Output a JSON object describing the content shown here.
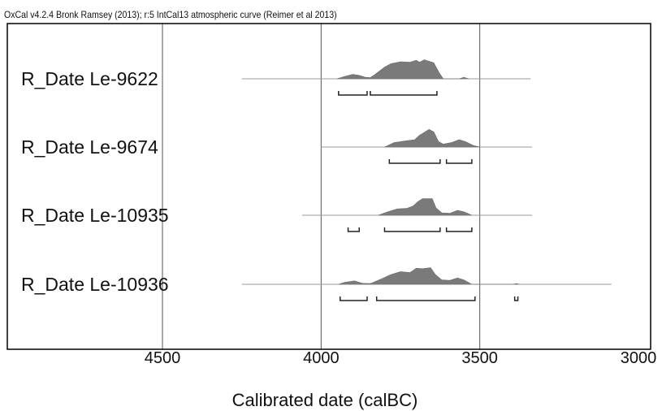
{
  "caption": "OxCal v4.2.4 Bronk Ramsey (2013); r:5 IntCal13 atmospheric curve (Reimer et al 2013)",
  "chart_data": {
    "type": "area",
    "title": "",
    "xlabel": "Calibrated date (calBC)",
    "ylabel": "",
    "xlim": [
      5000,
      3000
    ],
    "x_reversed": true,
    "xticks": [
      4500,
      4000,
      3500,
      3000
    ],
    "grid": "vertical at 4500, 4000, 3500",
    "colors": {
      "distribution": "#7a7a7a",
      "baseline": "#999999",
      "bracket": "#222222",
      "frame": "#000000"
    },
    "series": [
      {
        "name": "R_Date Le-9622",
        "range": [
          4250,
          3340
        ],
        "density": [
          [
            3950,
            0
          ],
          [
            3925,
            0.1
          ],
          [
            3900,
            0.18
          ],
          [
            3880,
            0.14
          ],
          [
            3860,
            0.06
          ],
          [
            3845,
            0.05
          ],
          [
            3830,
            0.18
          ],
          [
            3800,
            0.48
          ],
          [
            3780,
            0.62
          ],
          [
            3750,
            0.7
          ],
          [
            3720,
            0.68
          ],
          [
            3700,
            0.76
          ],
          [
            3690,
            0.68
          ],
          [
            3675,
            0.78
          ],
          [
            3660,
            0.72
          ],
          [
            3645,
            0.66
          ],
          [
            3628,
            0.25
          ],
          [
            3615,
            0
          ],
          [
            3565,
            0
          ],
          [
            3550,
            0.06
          ],
          [
            3535,
            0
          ]
        ],
        "intervals": [
          [
            3945,
            3855
          ],
          [
            3845,
            3635
          ]
        ]
      },
      {
        "name": "R_Date Le-9674",
        "range": [
          4000,
          3335
        ],
        "density": [
          [
            3800,
            0
          ],
          [
            3770,
            0.18
          ],
          [
            3740,
            0.24
          ],
          [
            3705,
            0.3
          ],
          [
            3690,
            0.48
          ],
          [
            3675,
            0.6
          ],
          [
            3660,
            0.72
          ],
          [
            3645,
            0.62
          ],
          [
            3630,
            0.22
          ],
          [
            3615,
            0.12
          ],
          [
            3590,
            0.18
          ],
          [
            3565,
            0.3
          ],
          [
            3545,
            0.22
          ],
          [
            3520,
            0.06
          ],
          [
            3500,
            0
          ]
        ],
        "intervals": [
          [
            3785,
            3625
          ],
          [
            3605,
            3525
          ]
        ]
      },
      {
        "name": "R_Date Le-10935",
        "range": [
          4060,
          3335
        ],
        "density": [
          [
            3820,
            0
          ],
          [
            3790,
            0.14
          ],
          [
            3760,
            0.26
          ],
          [
            3730,
            0.28
          ],
          [
            3710,
            0.38
          ],
          [
            3695,
            0.56
          ],
          [
            3680,
            0.68
          ],
          [
            3650,
            0.68
          ],
          [
            3638,
            0.3
          ],
          [
            3620,
            0.1
          ],
          [
            3595,
            0.08
          ],
          [
            3570,
            0.2
          ],
          [
            3550,
            0.14
          ],
          [
            3525,
            0
          ]
        ],
        "intervals": [
          [
            3915,
            3880
          ],
          [
            3800,
            3625
          ],
          [
            3605,
            3525
          ]
        ]
      },
      {
        "name": "R_Date Le-10936",
        "range": [
          4250,
          3085
        ],
        "density": [
          [
            3945,
            0
          ],
          [
            3925,
            0.08
          ],
          [
            3895,
            0.14
          ],
          [
            3870,
            0.04
          ],
          [
            3845,
            0.03
          ],
          [
            3810,
            0.22
          ],
          [
            3780,
            0.4
          ],
          [
            3750,
            0.52
          ],
          [
            3720,
            0.48
          ],
          [
            3700,
            0.66
          ],
          [
            3680,
            0.64
          ],
          [
            3655,
            0.68
          ],
          [
            3640,
            0.4
          ],
          [
            3620,
            0.18
          ],
          [
            3595,
            0.16
          ],
          [
            3570,
            0.26
          ],
          [
            3550,
            0.18
          ],
          [
            3525,
            0
          ],
          [
            3395,
            0
          ],
          [
            3385,
            0.03
          ],
          [
            3375,
            0
          ]
        ],
        "intervals": [
          [
            3940,
            3855
          ],
          [
            3825,
            3515
          ],
          [
            3390,
            3380
          ]
        ]
      }
    ]
  }
}
